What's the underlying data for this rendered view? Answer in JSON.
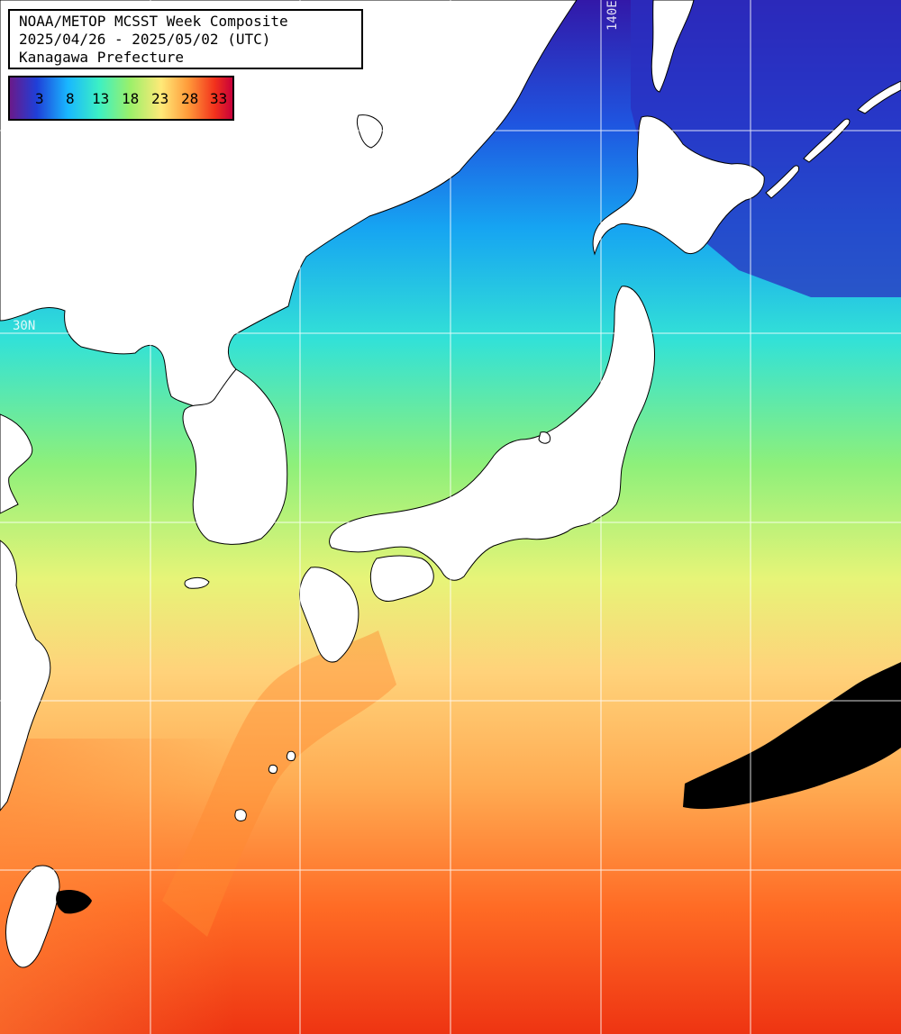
{
  "title": {
    "line1": "NOAA/METOP MCSST Week Composite",
    "line2": "2025/04/26 - 2025/05/02 (UTC)",
    "line3": "Kanagawa Prefecture"
  },
  "color_scale": {
    "ticks": [
      "3",
      "8",
      "13",
      "18",
      "23",
      "28",
      "33"
    ],
    "unit_range": [
      0,
      35
    ],
    "colors": [
      "#6a1a8a",
      "#1f3fd8",
      "#19b7ff",
      "#3cf0c4",
      "#9bf06a",
      "#ffe978",
      "#ff9b3a",
      "#f2321c",
      "#c8003a"
    ]
  },
  "grid_labels": {
    "lon": "140E",
    "lat": "30N"
  },
  "colors": {
    "land": "#ffffff",
    "coast": "#000000",
    "cloud": "#000000",
    "grid": "#ffffff"
  }
}
